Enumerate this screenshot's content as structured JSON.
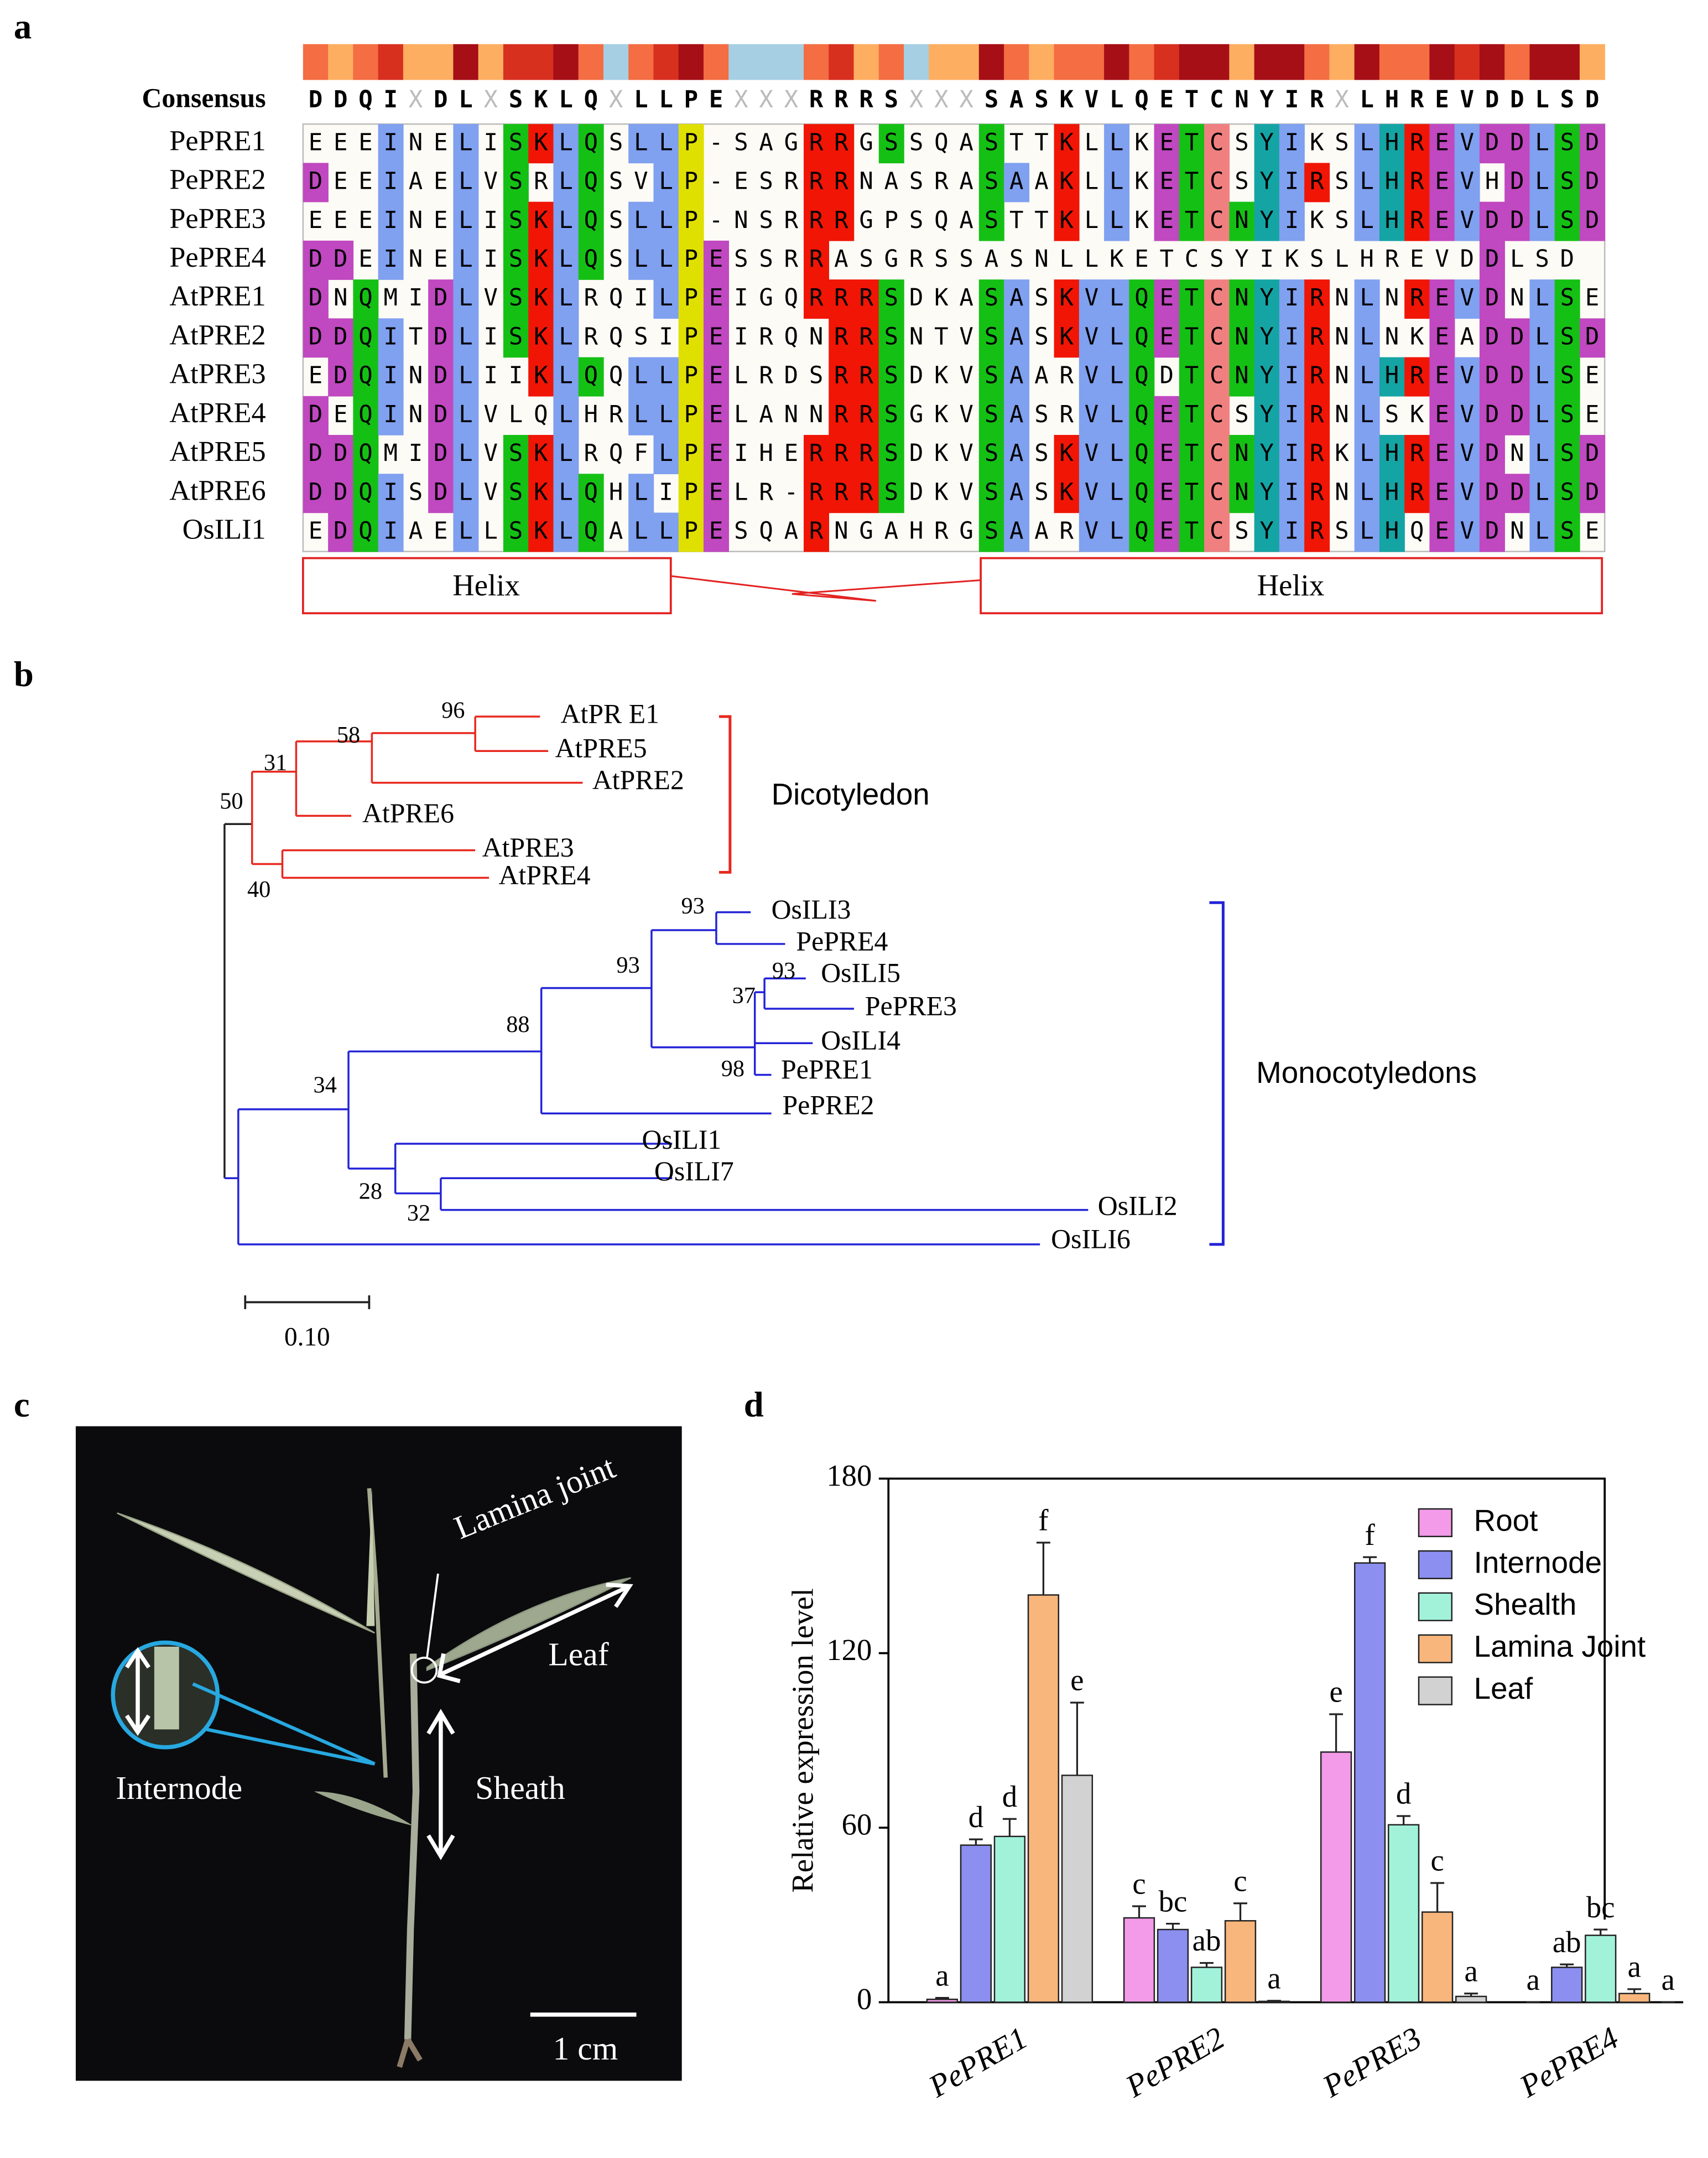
{
  "panel_labels": [
    "a",
    "b",
    "c",
    "d"
  ],
  "alignment": {
    "consensus_label": "Consensus",
    "consensus": "DDQIXDLXSKLQXLLPEXXXRRRSXXXSASKVLQETCNYIRXLHREVDDLSD",
    "sequences": [
      {
        "name": "PePRE1",
        "seq": "EEEINELISKLQSLLP-SAGRRGSSQASTTKLLKETCSYIKSLHREVDDLSD"
      },
      {
        "name": "PePRE2",
        "seq": "DEEIAELVSRLQSVLP-ESRRRNASRASAAKLLKETCSYIRSLHREVHDLSD"
      },
      {
        "name": "PePRE3",
        "seq": "EEEINELISKLQSLLP-NSRRRGPSQASTTKLLKETCNYIKSLHREVDDLSD"
      },
      {
        "name": "PePRE4",
        "seq": "DDEINELISKLQSLLPESSRRASGRSSASNLLKETCSYIKSLHREVDDLSD"
      },
      {
        "name": "AtPRE1",
        "seq": "DNQMIDLVSKLRQILPEIGQRRRSDKASASKVLQETCNYIRNLNREVDNLSE"
      },
      {
        "name": "AtPRE2",
        "seq": "DDQITDLISKLRQSIPEIRQNRRSNTVSASKVLQETCNYIRNLNKEADDLSD"
      },
      {
        "name": "AtPRE3",
        "seq": "EDQINDLIIKLQQLLPELRDSRRSDKVSAARVLQDTCNYIRNLHREVDDLSE"
      },
      {
        "name": "AtPRE4",
        "seq": "DEQINDLVLQLHRLLPELANNRRSGKVSASRVLQETCSYIRNLSKEVDDLSE"
      },
      {
        "name": "AtPRE5",
        "seq": "DDQMIDLVSKLRQFLPEIHERRRSDKVSASKVLQETCNYIRKLHREVDNLSD"
      },
      {
        "name": "AtPRE6",
        "seq": "DDQISDLVSKLQHLIPELR-RRRSDKVSASKVLQETCNYIRNLHREVDDLSD"
      },
      {
        "name": "OsILI1",
        "seq": "EDQIAELLSKLQALLPESQARNGAHRGSAARVLQETCSYIRSLHQEVDNLSE"
      }
    ],
    "helix_labels": [
      "Helix",
      "Helix"
    ]
  },
  "tree": {
    "leaves": [
      "AtPR E1",
      "AtPRE5",
      "AtPRE2",
      "AtPRE6",
      "AtPRE3",
      "AtPRE4",
      "OsILI3",
      "PePRE4",
      "OsILI5",
      "PePRE3",
      "OsILI4",
      "PePRE1",
      "PePRE2",
      "OsILI1",
      "OsILI7",
      "OsILI2",
      "OsILI6"
    ],
    "bootstrap": [
      96,
      58,
      31,
      50,
      40,
      93,
      93,
      93,
      37,
      88,
      98,
      34,
      28,
      32
    ],
    "groups": [
      "Dicotyledon",
      "Monocotyledons"
    ],
    "scale_label": "0.10"
  },
  "photo": {
    "labels": [
      "Lamina joint",
      "Leaf",
      "Internode",
      "Sheath"
    ],
    "scale_label": "1 cm"
  },
  "chart_data": {
    "type": "bar",
    "ylabel": "Relative expression level",
    "categories": [
      "PePRE1",
      "PePRE2",
      "PePRE3",
      "PePRE4"
    ],
    "ylim": [
      0,
      180
    ],
    "yticks": [
      0,
      60,
      120,
      180
    ],
    "legend": "upper right",
    "series": [
      {
        "name": "Root",
        "color": "#f39ae9",
        "values": [
          1,
          29,
          86,
          0
        ],
        "errors": [
          0.5,
          4,
          13,
          0
        ],
        "letters": [
          "a",
          "c",
          "e",
          "a"
        ]
      },
      {
        "name": "Internode",
        "color": "#8c8ff0",
        "values": [
          54,
          25,
          151,
          12
        ],
        "errors": [
          2,
          2,
          2,
          1
        ],
        "letters": [
          "d",
          "bc",
          "f",
          "ab"
        ]
      },
      {
        "name": "Shealth",
        "color": "#a2f2da",
        "values": [
          57,
          12,
          61,
          23
        ],
        "errors": [
          6,
          1.5,
          3,
          2
        ],
        "letters": [
          "d",
          "ab",
          "d",
          "bc"
        ]
      },
      {
        "name": "Lamina Joint",
        "color": "#f8b67c",
        "values": [
          140,
          28,
          31,
          3
        ],
        "errors": [
          18,
          6,
          10,
          1.5
        ],
        "letters": [
          "f",
          "c",
          "c",
          "a"
        ]
      },
      {
        "name": "Leaf",
        "color": "#d2d2d2",
        "values": [
          78,
          0.3,
          2,
          0
        ],
        "errors": [
          25,
          0.2,
          1,
          0
        ],
        "letters": [
          "e",
          "a",
          "a",
          "a"
        ]
      }
    ]
  }
}
